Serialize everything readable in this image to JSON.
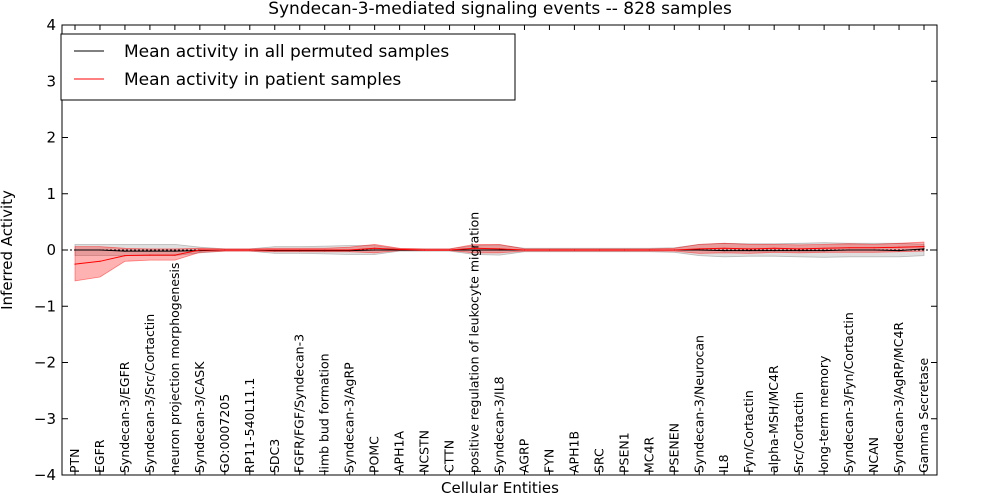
{
  "chart_data": {
    "type": "line",
    "title": "Syndecan-3-mediated signaling events -- 828 samples",
    "xlabel": "Cellular Entities",
    "ylabel": "Inferred Activity",
    "ylim": [
      -4,
      4
    ],
    "yticks": [
      -4,
      -3,
      -2,
      -1,
      0,
      1,
      2,
      3,
      4
    ],
    "ytick_labels": [
      "−4",
      "−3",
      "−2",
      "−1",
      "0",
      "1",
      "2",
      "3",
      "4"
    ],
    "legend_position": "top-left",
    "categories": [
      "PTN",
      "EGFR",
      "Syndecan-3/EGFR",
      "Syndecan-3/Src/Cortactin",
      "neuron projection morphogenesis",
      "Syndecan-3/CASK",
      "GO:0007205",
      "RP11-540L11.1",
      "SDC3",
      "FGFR/FGF/Syndecan-3",
      "limb bud formation",
      "Syndecan-3/AgRP",
      "POMC",
      "APH1A",
      "NCSTN",
      "CTTN",
      "positive regulation of leukocyte migration",
      "Syndecan-3/IL8",
      "AGRP",
      "FYN",
      "APH1B",
      "SRC",
      "PSEN1",
      "MC4R",
      "PSENEN",
      "Syndecan-3/Neurocan",
      "IL8",
      "Fyn/Cortactin",
      "alpha-MSH/MC4R",
      "Src/Cortactin",
      "long-term memory",
      "Syndecan-3/Fyn/Cortactin",
      "NCAN",
      "Syndecan-3/AgRP/MC4R",
      "Gamma Secretase"
    ],
    "series": [
      {
        "name": "Mean activity in all permuted samples",
        "color": "#000000",
        "values": [
          0.0,
          0.0,
          -0.02,
          -0.02,
          -0.02,
          -0.01,
          0.0,
          0.0,
          -0.01,
          -0.01,
          -0.01,
          -0.01,
          0.0,
          0.0,
          0.0,
          0.0,
          0.0,
          0.0,
          0.0,
          0.0,
          0.0,
          0.0,
          0.0,
          0.0,
          0.0,
          0.0,
          -0.01,
          -0.01,
          -0.01,
          -0.01,
          -0.01,
          0.0,
          0.0,
          -0.01,
          0.02
        ],
        "band_lower": [
          -0.1,
          -0.1,
          -0.1,
          -0.1,
          -0.1,
          -0.05,
          -0.02,
          -0.02,
          -0.06,
          -0.06,
          -0.07,
          -0.08,
          -0.08,
          -0.02,
          -0.02,
          -0.02,
          -0.08,
          -0.09,
          -0.03,
          -0.03,
          -0.03,
          -0.03,
          -0.03,
          -0.03,
          -0.04,
          -0.1,
          -0.12,
          -0.11,
          -0.11,
          -0.12,
          -0.13,
          -0.12,
          -0.12,
          -0.12,
          -0.1
        ],
        "band_upper": [
          0.1,
          0.1,
          0.1,
          0.1,
          0.1,
          0.05,
          0.02,
          0.02,
          0.06,
          0.06,
          0.07,
          0.08,
          0.08,
          0.02,
          0.02,
          0.02,
          0.08,
          0.09,
          0.03,
          0.03,
          0.03,
          0.03,
          0.03,
          0.03,
          0.04,
          0.1,
          0.12,
          0.11,
          0.11,
          0.12,
          0.13,
          0.12,
          0.12,
          0.12,
          0.1
        ]
      },
      {
        "name": "Mean activity in patient samples",
        "color": "#ff0000",
        "values": [
          -0.25,
          -0.2,
          -0.1,
          -0.09,
          -0.09,
          0.0,
          0.0,
          0.0,
          0.0,
          0.0,
          0.0,
          0.0,
          0.03,
          0.01,
          0.0,
          0.0,
          0.03,
          0.02,
          0.0,
          0.0,
          0.0,
          0.0,
          0.0,
          0.0,
          0.0,
          0.02,
          0.03,
          0.02,
          0.03,
          0.02,
          0.03,
          0.04,
          0.04,
          0.05,
          0.06
        ],
        "band_lower": [
          -0.55,
          -0.48,
          -0.2,
          -0.18,
          -0.18,
          -0.04,
          -0.02,
          -0.02,
          -0.03,
          -0.03,
          -0.03,
          -0.03,
          -0.05,
          -0.01,
          -0.01,
          -0.01,
          -0.05,
          -0.05,
          -0.02,
          -0.02,
          -0.02,
          -0.02,
          -0.02,
          -0.02,
          -0.02,
          -0.06,
          -0.05,
          -0.06,
          -0.04,
          -0.05,
          -0.04,
          -0.04,
          -0.04,
          -0.03,
          -0.02
        ],
        "band_upper": [
          0.06,
          0.06,
          0.03,
          0.02,
          0.02,
          0.03,
          0.02,
          0.02,
          0.03,
          0.03,
          0.03,
          0.05,
          0.1,
          0.03,
          0.02,
          0.02,
          0.1,
          0.1,
          0.02,
          0.02,
          0.02,
          0.02,
          0.02,
          0.02,
          0.03,
          0.1,
          0.12,
          0.1,
          0.1,
          0.09,
          0.1,
          0.11,
          0.1,
          0.12,
          0.14
        ]
      }
    ],
    "zero_line": "dotted black",
    "grid": false
  }
}
